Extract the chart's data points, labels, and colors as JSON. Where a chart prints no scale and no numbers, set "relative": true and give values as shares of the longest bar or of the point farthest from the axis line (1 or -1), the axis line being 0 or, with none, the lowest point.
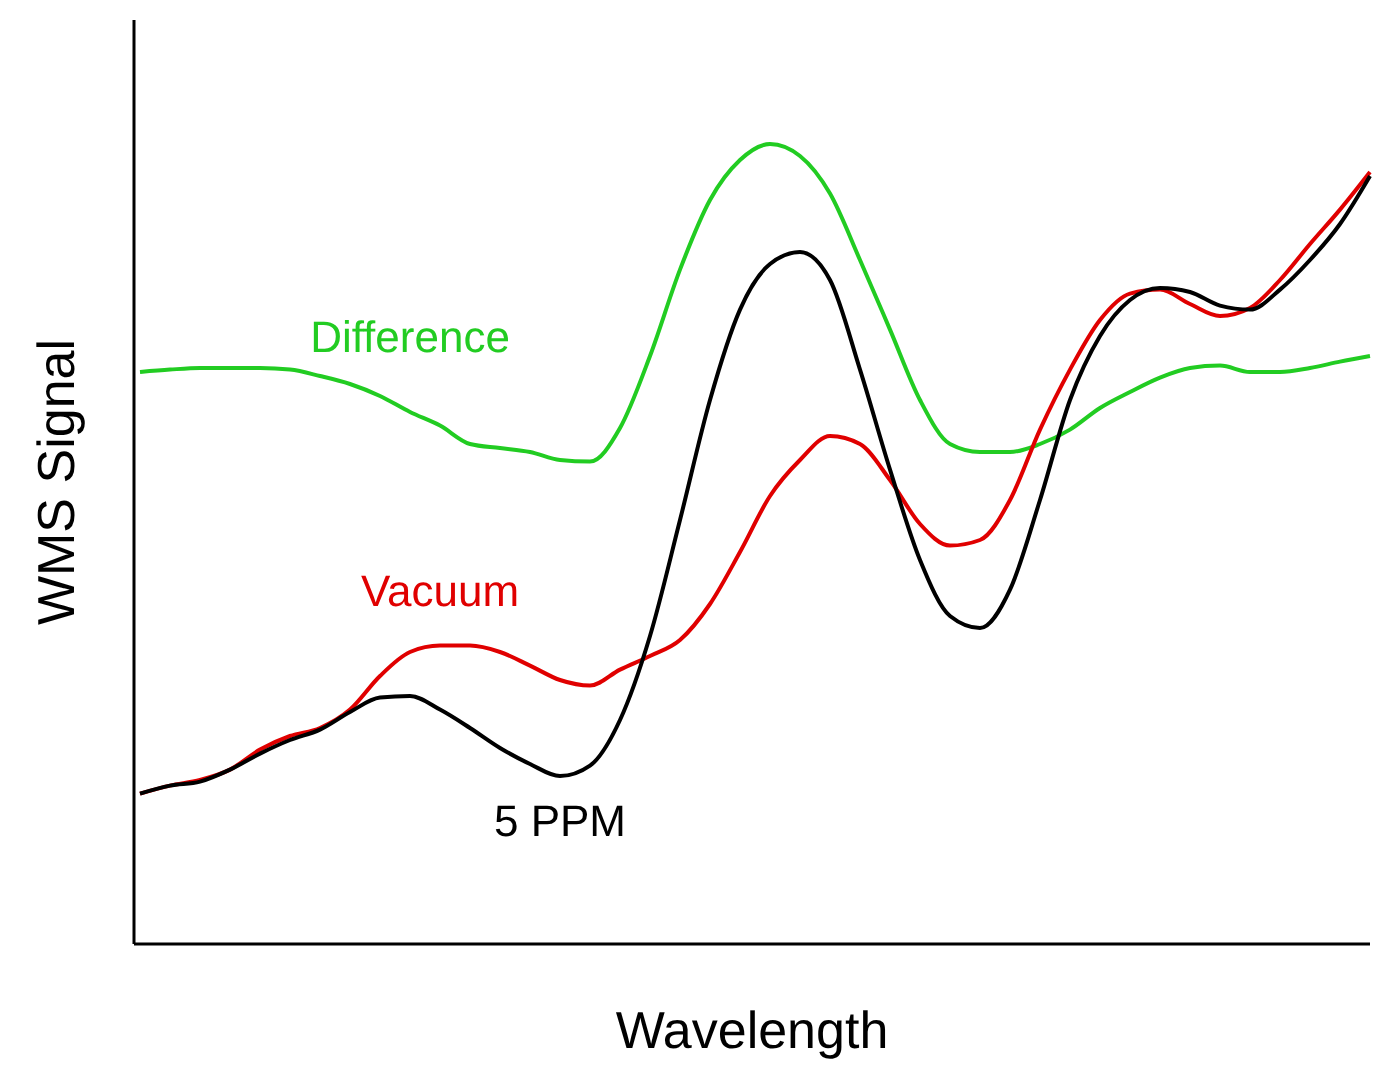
{
  "chart_data": {
    "type": "line",
    "relative": true,
    "xlabel": "Wavelength",
    "ylabel": "WMS Signal",
    "legend": false,
    "categories": [
      null,
      null,
      null,
      null,
      null,
      null,
      null,
      null,
      null,
      null,
      null,
      null,
      null,
      null,
      null,
      null,
      null,
      null,
      null,
      null,
      null,
      null,
      null,
      null,
      null,
      null,
      null,
      null,
      null,
      null,
      null,
      null,
      null,
      null,
      null,
      null,
      null,
      null,
      null,
      null,
      null,
      null
    ],
    "series": [
      {
        "name": "Difference",
        "color": "#22cc22",
        "values": [
          0.715,
          0.718,
          0.72,
          0.72,
          0.72,
          0.718,
          0.71,
          0.7,
          0.685,
          0.665,
          0.648,
          0.625,
          0.62,
          0.615,
          0.605,
          0.603,
          0.645,
          0.735,
          0.843,
          0.93,
          0.98,
          1,
          0.985,
          0.938,
          0.855,
          0.768,
          0.68,
          0.625,
          0.615,
          0.615,
          0.625,
          0.643,
          0.67,
          0.69,
          0.708,
          0.72,
          0.723,
          0.715,
          0.715,
          0.72,
          0.728,
          0.735
        ]
      },
      {
        "name": "Vacuum",
        "color": "#e00000",
        "values": [
          0.188,
          0.198,
          0.205,
          0.218,
          0.243,
          0.26,
          0.27,
          0.293,
          0.335,
          0.365,
          0.373,
          0.373,
          0.365,
          0.348,
          0.33,
          0.323,
          0.343,
          0.36,
          0.38,
          0.425,
          0.49,
          0.56,
          0.605,
          0.635,
          0.625,
          0.58,
          0.525,
          0.498,
          0.505,
          0.555,
          0.643,
          0.718,
          0.78,
          0.813,
          0.818,
          0.8,
          0.785,
          0.795,
          0.83,
          0.875,
          0.918,
          0.965
        ]
      },
      {
        "name": "5 PPM",
        "color": "#000000",
        "values": [
          0.188,
          0.198,
          0.203,
          0.218,
          0.238,
          0.255,
          0.268,
          0.29,
          0.308,
          0.31,
          0.293,
          0.27,
          0.245,
          0.225,
          0.21,
          0.223,
          0.28,
          0.385,
          0.53,
          0.68,
          0.793,
          0.85,
          0.865,
          0.83,
          0.718,
          0.593,
          0.48,
          0.41,
          0.395,
          0.443,
          0.555,
          0.68,
          0.76,
          0.805,
          0.82,
          0.815,
          0.798,
          0.793,
          0.818,
          0.855,
          0.9,
          0.96
        ]
      }
    ]
  }
}
